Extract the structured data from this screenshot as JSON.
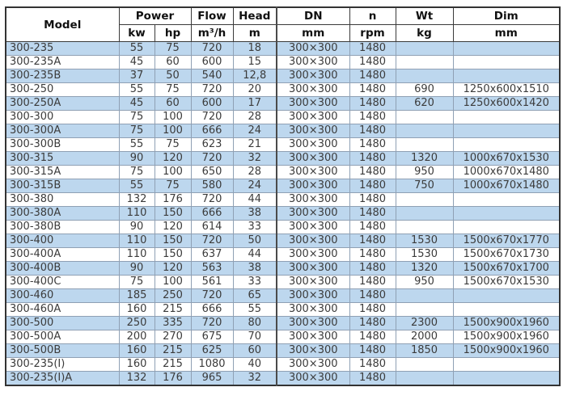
{
  "table": {
    "header": {
      "model": "Model",
      "power": "Power",
      "kw": "kw",
      "hp": "hp",
      "flow": "Flow",
      "flow_unit": "m³/h",
      "head": "Head",
      "head_unit": "m",
      "dn": "DN",
      "dn_unit": "mm",
      "n": "n",
      "n_unit": "rpm",
      "wt": "Wt",
      "wt_unit": "kg",
      "dim": "Dim",
      "dim_unit": "mm"
    },
    "rows": [
      [
        "300-235",
        "55",
        "75",
        "720",
        "18",
        "300×300",
        "1480",
        "",
        ""
      ],
      [
        "300-235A",
        "45",
        "60",
        "600",
        "15",
        "300×300",
        "1480",
        "",
        ""
      ],
      [
        "300-235B",
        "37",
        "50",
        "540",
        "12,8",
        "300×300",
        "1480",
        "",
        ""
      ],
      [
        "300-250",
        "55",
        "75",
        "720",
        "20",
        "300×300",
        "1480",
        "690",
        "1250x600x1510"
      ],
      [
        "300-250A",
        "45",
        "60",
        "600",
        "17",
        "300×300",
        "1480",
        "620",
        "1250x600x1420"
      ],
      [
        "300-300",
        "75",
        "100",
        "720",
        "28",
        "300×300",
        "1480",
        "",
        ""
      ],
      [
        "300-300A",
        "75",
        "100",
        "666",
        "24",
        "300×300",
        "1480",
        "",
        ""
      ],
      [
        "300-300B",
        "55",
        "75",
        "623",
        "21",
        "300×300",
        "1480",
        "",
        ""
      ],
      [
        "300-315",
        "90",
        "120",
        "720",
        "32",
        "300×300",
        "1480",
        "1320",
        "1000x670x1530"
      ],
      [
        "300-315A",
        "75",
        "100",
        "650",
        "28",
        "300×300",
        "1480",
        "950",
        "1000x670x1480"
      ],
      [
        "300-315B",
        "55",
        "75",
        "580",
        "24",
        "300×300",
        "1480",
        "750",
        "1000x670x1480"
      ],
      [
        "300-380",
        "132",
        "176",
        "720",
        "44",
        "300×300",
        "1480",
        "",
        ""
      ],
      [
        "300-380A",
        "110",
        "150",
        "666",
        "38",
        "300×300",
        "1480",
        "",
        ""
      ],
      [
        "300-380B",
        "90",
        "120",
        "614",
        "33",
        "300×300",
        "1480",
        "",
        ""
      ],
      [
        "300-400",
        "110",
        "150",
        "720",
        "50",
        "300×300",
        "1480",
        "1530",
        "1500x670x1770"
      ],
      [
        "300-400A",
        "110",
        "150",
        "637",
        "44",
        "300×300",
        "1480",
        "1530",
        "1500x670x1730"
      ],
      [
        "300-400B",
        "90",
        "120",
        "563",
        "38",
        "300×300",
        "1480",
        "1320",
        "1500x670x1700"
      ],
      [
        "300-400C",
        "75",
        "100",
        "561",
        "33",
        "300×300",
        "1480",
        "950",
        "1500x670x1530"
      ],
      [
        "300-460",
        "185",
        "250",
        "720",
        "65",
        "300×300",
        "1480",
        "",
        ""
      ],
      [
        "300-460A",
        "160",
        "215",
        "666",
        "55",
        "300×300",
        "1480",
        "",
        ""
      ],
      [
        "300-500",
        "250",
        "335",
        "720",
        "80",
        "300×300",
        "1480",
        "2300",
        "1500x900x1960"
      ],
      [
        "300-500A",
        "200",
        "270",
        "675",
        "70",
        "300×300",
        "1480",
        "2000",
        "1500x900x1960"
      ],
      [
        "300-500B",
        "160",
        "215",
        "625",
        "60",
        "300×300",
        "1480",
        "1850",
        "1500x900x1960"
      ],
      [
        "300-235(I)",
        "160",
        "215",
        "1080",
        "40",
        "300×300",
        "1480",
        "",
        ""
      ],
      [
        "300-235(I)A",
        "132",
        "176",
        "965",
        "32",
        "300×300",
        "1480",
        "",
        ""
      ]
    ],
    "colors": {
      "row_alt": "#bdd7ee",
      "row_plain": "#ffffff",
      "cell_border": "#8fa0b4",
      "header_border": "#3a3a3a",
      "text": "#3b3b3b"
    }
  }
}
